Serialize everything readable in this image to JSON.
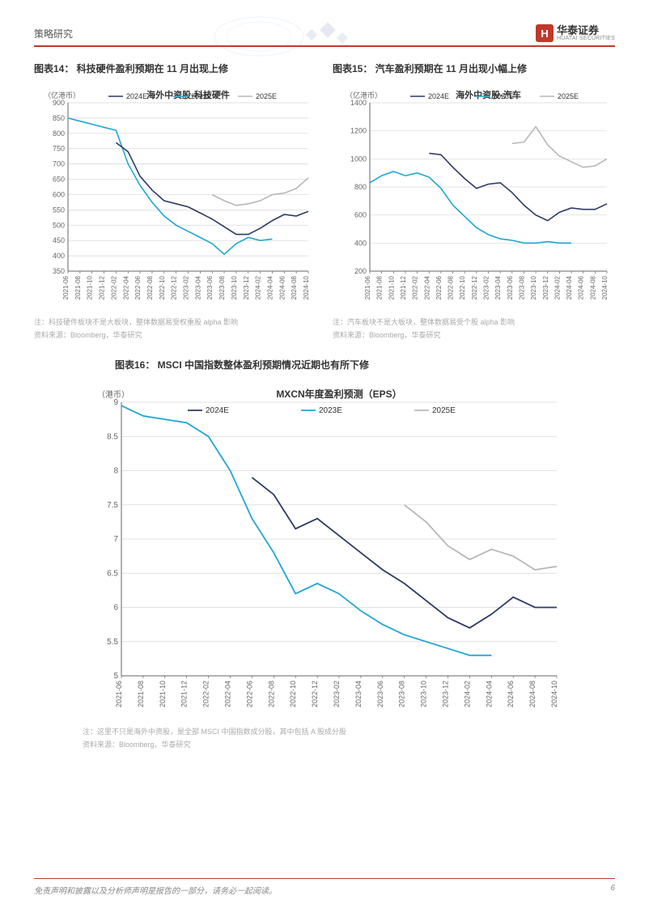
{
  "header": {
    "section": "策略研究",
    "logo_cn": "华泰证券",
    "logo_en": "HUATAI SECURITIES",
    "logo_mark": "H"
  },
  "footer": {
    "disclaimer": "免责声明和披露以及分析师声明是报告的一部分，请务必一起阅读。",
    "page": "6"
  },
  "x_labels": [
    "2021-06",
    "2021-08",
    "2021-10",
    "2021-12",
    "2022-02",
    "2022-04",
    "2022-06",
    "2022-08",
    "2022-10",
    "2022-12",
    "2023-02",
    "2023-04",
    "2023-06",
    "2023-08",
    "2023-10",
    "2023-12",
    "2024-02",
    "2024-04",
    "2024-06",
    "2024-08",
    "2024-10"
  ],
  "legend": {
    "s2024": "2024E",
    "s2023": "2023E",
    "s2025": "2025E"
  },
  "colors": {
    "s2024": "#2b3a67",
    "s2023": "#1fa6d1",
    "s2025": "#b8b8b8",
    "grid": "#d6d6d6",
    "axis": "#666666",
    "text": "#666666",
    "bg": "#ffffff"
  },
  "chart14": {
    "title": "图表14： 科技硬件盈利预期在 11 月出现上修",
    "subtitle": "海外中资股-科技硬件",
    "ylabel": "（亿港币）",
    "ylim": [
      350,
      900
    ],
    "ytick_step": 50,
    "note1": "注：科技硬件板块不是大板块，整体数据易受权重股 alpha 影响",
    "note2": "资料来源：Bloomberg，华泰研究",
    "series": {
      "s2023": [
        850,
        840,
        830,
        820,
        810,
        700,
        630,
        575,
        530,
        500,
        480,
        460,
        440,
        405,
        440,
        460,
        450,
        455,
        null,
        null,
        null
      ],
      "s2024": [
        null,
        null,
        null,
        null,
        770,
        740,
        660,
        615,
        580,
        570,
        560,
        540,
        520,
        495,
        470,
        470,
        490,
        515,
        535,
        530,
        545
      ],
      "s2025": [
        null,
        null,
        null,
        null,
        null,
        null,
        null,
        null,
        null,
        null,
        null,
        null,
        600,
        580,
        565,
        570,
        580,
        600,
        605,
        620,
        655
      ]
    }
  },
  "chart15": {
    "title": "图表15： 汽车盈利预期在 11 月出现小幅上修",
    "subtitle": "海外中资股-汽车",
    "ylabel": "（亿港币）",
    "ylim": [
      200,
      1400
    ],
    "ytick_step": 200,
    "note1": "注：汽车板块不是大板块，整体数据易受个股 alpha 影响",
    "note2": "资料来源：Bloomberg，华泰研究",
    "series": {
      "s2023": [
        830,
        880,
        910,
        880,
        900,
        870,
        790,
        670,
        590,
        510,
        460,
        430,
        420,
        400,
        400,
        410,
        400,
        400,
        null,
        null,
        null
      ],
      "s2024": [
        null,
        null,
        null,
        null,
        null,
        1040,
        1030,
        940,
        860,
        790,
        820,
        830,
        760,
        670,
        600,
        560,
        620,
        650,
        640,
        640,
        680
      ],
      "s2025": [
        null,
        null,
        null,
        null,
        null,
        null,
        null,
        null,
        null,
        null,
        null,
        null,
        1110,
        1120,
        1230,
        1100,
        1020,
        980,
        940,
        950,
        1000
      ]
    }
  },
  "chart16": {
    "title": "图表16： MSCI 中国指数整体盈利预期情况近期也有所下修",
    "subtitle": "MXCN年度盈利预测（EPS）",
    "ylabel": "（港币）",
    "ylim": [
      5.0,
      9.0
    ],
    "ytick_step": 0.5,
    "note1": "注：这里不只是海外中资股，是全部 MSCI 中国指数成分股，其中包括 A 股成分股",
    "note2": "资料来源：Bloomberg，华泰研究",
    "series": {
      "s2023": [
        8.95,
        8.8,
        8.75,
        8.7,
        8.5,
        8.0,
        7.3,
        6.8,
        6.2,
        6.35,
        6.2,
        5.95,
        5.75,
        5.6,
        5.5,
        5.4,
        5.3,
        5.3,
        null,
        null,
        null
      ],
      "s2024": [
        null,
        null,
        null,
        null,
        null,
        null,
        7.9,
        7.65,
        7.15,
        7.3,
        7.05,
        6.8,
        6.55,
        6.35,
        6.1,
        5.85,
        5.7,
        5.9,
        6.15,
        6.0,
        6.0
      ],
      "s2025": [
        null,
        null,
        null,
        null,
        null,
        null,
        null,
        null,
        null,
        null,
        null,
        null,
        null,
        7.5,
        7.25,
        6.9,
        6.7,
        6.85,
        6.75,
        6.55,
        6.6
      ]
    }
  }
}
